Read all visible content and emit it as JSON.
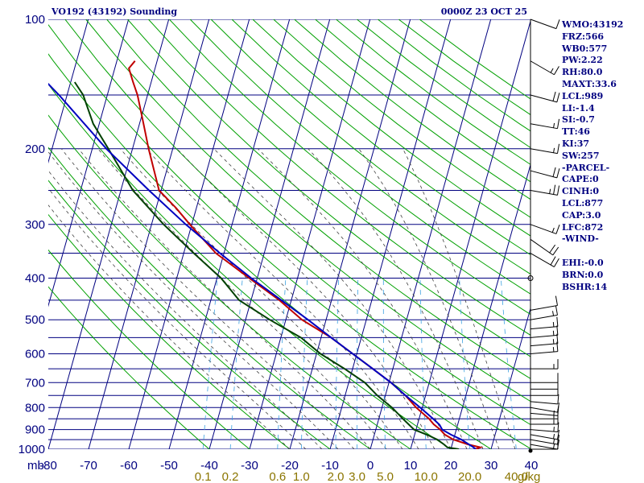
{
  "header": {
    "title": "VO192 (43192) Sounding",
    "datetime": "0000Z 23 OCT 25"
  },
  "indices": [
    "WMO:43192",
    "FRZ:566",
    "WB0:577",
    "PW:2.22",
    "RH:80.0",
    "MAXT:33.6",
    "LCL:989",
    "LI:-1.4",
    "SI:-0.7",
    "TT:46",
    "KI:37",
    "SW:257",
    "-PARCEL-",
    "CAPE:0",
    "CINH:0",
    "LCL:877",
    "CAP:3.0",
    "LFC:872",
    "-WIND-",
    "",
    "EHI:-0.0",
    "BRN:0.0",
    "BSHR:14"
  ],
  "colors": {
    "grid": "#000080",
    "dry_adiabat": "#00a000",
    "moist_adiabat": "#404040",
    "mixing_ratio": "#3aa0e0",
    "temperature": "#c00000",
    "dewpoint": "#004000",
    "parcel": "#0000c0",
    "wind_barb": "#000000",
    "mixing_ratio_label": "#8b7500"
  },
  "chart_data": {
    "type": "skew-t",
    "pressure_axis_unit": "mb",
    "pressure_levels": [
      100,
      150,
      200,
      250,
      300,
      350,
      400,
      450,
      500,
      550,
      600,
      650,
      700,
      750,
      800,
      850,
      900,
      950,
      1000
    ],
    "pressure_tick_labels": [
      "100",
      "200",
      "300",
      "400",
      "500",
      "600",
      "700",
      "800",
      "900",
      "1000"
    ],
    "temperature_ticks": [
      -80,
      -70,
      -60,
      -50,
      -40,
      -30,
      -20,
      -10,
      0,
      10,
      20,
      30,
      40
    ],
    "temperature_tick_labels": [
      "-80",
      "-70",
      "-60",
      "-50",
      "-40",
      "-30",
      "-20",
      "-10",
      "0",
      "10",
      "20",
      "30",
      "40"
    ],
    "ylim": [
      1000,
      100
    ],
    "xlim": [
      -80,
      40
    ],
    "mixing_ratio_labels": [
      "0.1",
      "0.2",
      "0.6",
      "1.0",
      "2.0",
      "3.0",
      "5.0",
      "10.0",
      "20.0",
      "40.0"
    ],
    "mixing_ratio_unit": "g/kg",
    "series": [
      {
        "key": "temperature",
        "points": [
          [
            1000,
            26.0
          ],
          [
            990,
            27.2
          ],
          [
            975,
            24.0
          ],
          [
            950,
            20.0
          ],
          [
            925,
            17.5
          ],
          [
            900,
            16.0
          ],
          [
            875,
            14.0
          ],
          [
            850,
            12.5
          ],
          [
            800,
            8.5
          ],
          [
            750,
            5.0
          ],
          [
            700,
            0.5
          ],
          [
            650,
            -5.0
          ],
          [
            600,
            -11.0
          ],
          [
            550,
            -17.5
          ],
          [
            500,
            -26.0
          ],
          [
            450,
            -33.0
          ],
          [
            400,
            -42.0
          ],
          [
            350,
            -52.0
          ],
          [
            300,
            -60.5
          ],
          [
            275,
            -65.0
          ],
          [
            250,
            -70.5
          ],
          [
            200,
            -76.0
          ],
          [
            175,
            -79.0
          ],
          [
            150,
            -82.5
          ],
          [
            140,
            -84.5
          ],
          [
            130,
            -86.5
          ],
          [
            125,
            -85.5
          ]
        ]
      },
      {
        "key": "dewpoint",
        "points": [
          [
            1000,
            22.0
          ],
          [
            990,
            19.0
          ],
          [
            975,
            18.0
          ],
          [
            950,
            16.0
          ],
          [
            925,
            13.0
          ],
          [
            900,
            9.5
          ],
          [
            850,
            6.0
          ],
          [
            800,
            2.5
          ],
          [
            750,
            -2.0
          ],
          [
            700,
            -6.0
          ],
          [
            650,
            -12.0
          ],
          [
            600,
            -19.0
          ],
          [
            550,
            -25.0
          ],
          [
            500,
            -34.0
          ],
          [
            450,
            -43.0
          ],
          [
            400,
            -49.0
          ],
          [
            350,
            -57.5
          ],
          [
            300,
            -67.0
          ],
          [
            250,
            -77.0
          ],
          [
            200,
            -86.0
          ],
          [
            175,
            -91.5
          ],
          [
            150,
            -96.0
          ],
          [
            140,
            -99.0
          ]
        ]
      },
      {
        "key": "parcel",
        "points": [
          [
            1000,
            26.2
          ],
          [
            990,
            25.5
          ],
          [
            950,
            22.0
          ],
          [
            925,
            19.0
          ],
          [
            900,
            16.5
          ],
          [
            877,
            15.5
          ],
          [
            850,
            13.5
          ],
          [
            800,
            9.5
          ],
          [
            750,
            5.0
          ],
          [
            700,
            0.5
          ],
          [
            650,
            -5.0
          ],
          [
            600,
            -11.0
          ],
          [
            550,
            -17.5
          ],
          [
            500,
            -24.5
          ],
          [
            450,
            -32.5
          ],
          [
            400,
            -41.5
          ],
          [
            350,
            -51.0
          ],
          [
            300,
            -61.5
          ],
          [
            250,
            -73.0
          ],
          [
            200,
            -86.5
          ],
          [
            150,
            -102.0
          ],
          [
            140,
            -106.0
          ]
        ]
      }
    ],
    "wind_profile": [
      {
        "pressure": 1000,
        "direction": 90,
        "speed_kt": 10
      },
      {
        "pressure": 975,
        "direction": 100,
        "speed_kt": 15
      },
      {
        "pressure": 950,
        "direction": 100,
        "speed_kt": 15
      },
      {
        "pressure": 925,
        "direction": 100,
        "speed_kt": 15
      },
      {
        "pressure": 900,
        "direction": 95,
        "speed_kt": 15
      },
      {
        "pressure": 875,
        "direction": 90,
        "speed_kt": 15
      },
      {
        "pressure": 850,
        "direction": 90,
        "speed_kt": 15
      },
      {
        "pressure": 825,
        "direction": 95,
        "speed_kt": 15
      },
      {
        "pressure": 800,
        "direction": 100,
        "speed_kt": 10
      },
      {
        "pressure": 775,
        "direction": 95,
        "speed_kt": 10
      },
      {
        "pressure": 750,
        "direction": 90,
        "speed_kt": 10
      },
      {
        "pressure": 725,
        "direction": 90,
        "speed_kt": 10
      },
      {
        "pressure": 700,
        "direction": 90,
        "speed_kt": 10
      },
      {
        "pressure": 650,
        "direction": 90,
        "speed_kt": 15
      },
      {
        "pressure": 600,
        "direction": 85,
        "speed_kt": 15
      },
      {
        "pressure": 575,
        "direction": 85,
        "speed_kt": 15
      },
      {
        "pressure": 550,
        "direction": 85,
        "speed_kt": 15
      },
      {
        "pressure": 525,
        "direction": 85,
        "speed_kt": 15
      },
      {
        "pressure": 500,
        "direction": 80,
        "speed_kt": 15
      },
      {
        "pressure": 475,
        "direction": 80,
        "speed_kt": 10
      },
      {
        "pressure": 400,
        "direction": 270,
        "speed_kt": 0
      },
      {
        "pressure": 350,
        "direction": 120,
        "speed_kt": 20
      },
      {
        "pressure": 325,
        "direction": 125,
        "speed_kt": 20
      },
      {
        "pressure": 300,
        "direction": 110,
        "speed_kt": 15
      },
      {
        "pressure": 250,
        "direction": 100,
        "speed_kt": 25
      },
      {
        "pressure": 225,
        "direction": 105,
        "speed_kt": 20
      },
      {
        "pressure": 200,
        "direction": 100,
        "speed_kt": 15
      },
      {
        "pressure": 175,
        "direction": 100,
        "speed_kt": 15
      },
      {
        "pressure": 150,
        "direction": 105,
        "speed_kt": 20
      },
      {
        "pressure": 125,
        "direction": 120,
        "speed_kt": 15
      },
      {
        "pressure": 100,
        "direction": 110,
        "speed_kt": 10
      }
    ]
  }
}
